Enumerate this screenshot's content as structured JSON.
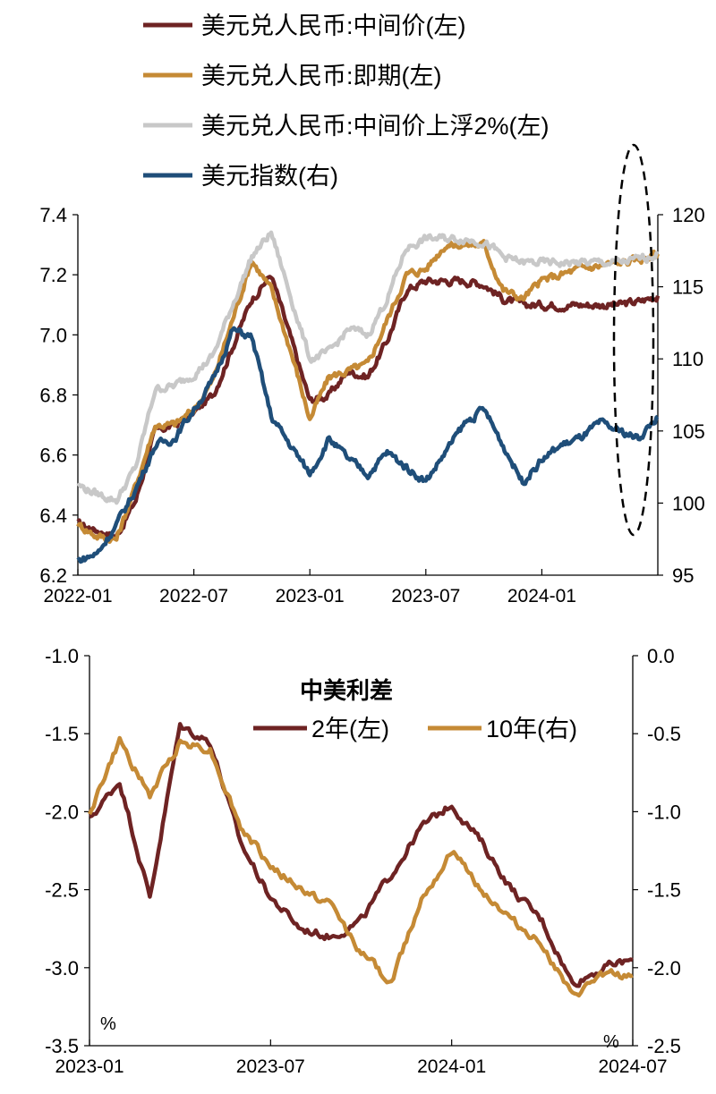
{
  "chart_data": [
    {
      "type": "line",
      "title": "",
      "x": [
        "2022-01",
        "2022-02",
        "2022-03",
        "2022-04",
        "2022-05",
        "2022-06",
        "2022-07",
        "2022-08",
        "2022-09",
        "2022-10",
        "2022-11",
        "2022-12",
        "2023-01",
        "2023-02",
        "2023-03",
        "2023-04",
        "2023-05",
        "2023-06",
        "2023-07",
        "2023-08",
        "2023-09",
        "2023-10",
        "2023-11",
        "2023-12",
        "2024-01",
        "2024-02",
        "2024-03",
        "2024-04",
        "2024-05",
        "2024-06",
        "2024-07"
      ],
      "x_ticks": [
        "2022-01",
        "2022-07",
        "2023-01",
        "2023-07",
        "2024-01"
      ],
      "y_left": {
        "lim": [
          6.2,
          7.4
        ],
        "ticks": [
          "6.2",
          "6.4",
          "6.6",
          "6.8",
          "7.0",
          "7.2",
          "7.4"
        ]
      },
      "y_right": {
        "lim": [
          95,
          120
        ],
        "ticks": [
          "95",
          "100",
          "105",
          "110",
          "115",
          "120"
        ]
      },
      "series": [
        {
          "name": "美元兑人民币:中间价(左)",
          "axis": "left",
          "color": "#6e2323",
          "values": [
            6.37,
            6.35,
            6.33,
            6.45,
            6.68,
            6.7,
            6.74,
            6.8,
            6.96,
            7.12,
            7.2,
            6.99,
            6.78,
            6.8,
            6.88,
            6.86,
            6.98,
            7.15,
            7.18,
            7.18,
            7.18,
            7.17,
            7.12,
            7.1,
            7.1,
            7.1,
            7.1,
            7.1,
            7.1,
            7.11,
            7.13
          ]
        },
        {
          "name": "美元兑人民币:即期(左)",
          "axis": "left",
          "color": "#c58a35",
          "values": [
            6.37,
            6.33,
            6.32,
            6.5,
            6.7,
            6.7,
            6.75,
            6.85,
            7.05,
            7.25,
            7.15,
            6.95,
            6.72,
            6.86,
            6.88,
            6.9,
            7.05,
            7.2,
            7.22,
            7.3,
            7.3,
            7.3,
            7.15,
            7.12,
            7.18,
            7.2,
            7.22,
            7.23,
            7.24,
            7.25,
            7.27
          ]
        },
        {
          "name": "美元兑人民币:中间价上浮2%(左)",
          "axis": "left",
          "color": "#c8c8c8",
          "values": [
            6.5,
            6.47,
            6.45,
            6.56,
            6.82,
            6.83,
            6.87,
            6.93,
            7.1,
            7.26,
            7.34,
            7.13,
            6.92,
            6.94,
            7.02,
            7.0,
            7.12,
            7.29,
            7.32,
            7.32,
            7.32,
            7.31,
            7.26,
            7.24,
            7.24,
            7.24,
            7.24,
            7.24,
            7.24,
            7.25,
            7.27
          ]
        },
        {
          "name": "美元指数(右)",
          "axis": "right",
          "color": "#1f4e79",
          "values": [
            96.0,
            96.5,
            98.5,
            101.0,
            104.0,
            104.5,
            106.5,
            108.5,
            112.0,
            111.5,
            106.0,
            104.0,
            102.0,
            104.5,
            103.0,
            102.0,
            103.5,
            102.5,
            101.5,
            103.5,
            105.5,
            106.5,
            104.0,
            101.5,
            103.0,
            104.0,
            104.5,
            105.5,
            105.0,
            104.5,
            106.0
          ]
        }
      ],
      "annotations": [
        "dashed-ellipse-around-2024-05-to-2024-07"
      ]
    },
    {
      "type": "line",
      "title": "中美利差",
      "x": [
        "2023-01",
        "2023-02",
        "2023-03",
        "2023-04",
        "2023-05",
        "2023-06",
        "2023-07",
        "2023-08",
        "2023-09",
        "2023-10",
        "2023-11",
        "2023-12",
        "2024-01",
        "2024-02",
        "2024-03",
        "2024-04",
        "2024-05",
        "2024-06",
        "2024-07"
      ],
      "x_ticks": [
        "2023-01",
        "2023-07",
        "2024-01",
        "2024-07"
      ],
      "y_left": {
        "lim": [
          -3.5,
          -1.0
        ],
        "ticks": [
          "-1.0",
          "-1.5",
          "-2.0",
          "-2.5",
          "-3.0",
          "-3.5"
        ],
        "unit": "%"
      },
      "y_right": {
        "lim": [
          -2.5,
          0.0
        ],
        "ticks": [
          "0.0",
          "-0.5",
          "-1.0",
          "-1.5",
          "-2.0",
          "-2.5"
        ],
        "unit": "%"
      },
      "series": [
        {
          "name": "2年(左)",
          "axis": "left",
          "color": "#6e2323",
          "values": [
            -2.05,
            -1.8,
            -2.55,
            -1.45,
            -1.55,
            -2.2,
            -2.55,
            -2.75,
            -2.8,
            -2.7,
            -2.4,
            -2.1,
            -1.95,
            -2.2,
            -2.5,
            -2.7,
            -3.1,
            -3.0,
            -2.95
          ]
        },
        {
          "name": "10年(右)",
          "axis": "right",
          "color": "#c58a35",
          "values": [
            -1.0,
            -0.55,
            -0.9,
            -0.55,
            -0.6,
            -1.1,
            -1.35,
            -1.5,
            -1.6,
            -1.9,
            -2.1,
            -1.55,
            -1.25,
            -1.5,
            -1.7,
            -1.85,
            -2.2,
            -2.05,
            -2.05
          ]
        }
      ]
    }
  ]
}
